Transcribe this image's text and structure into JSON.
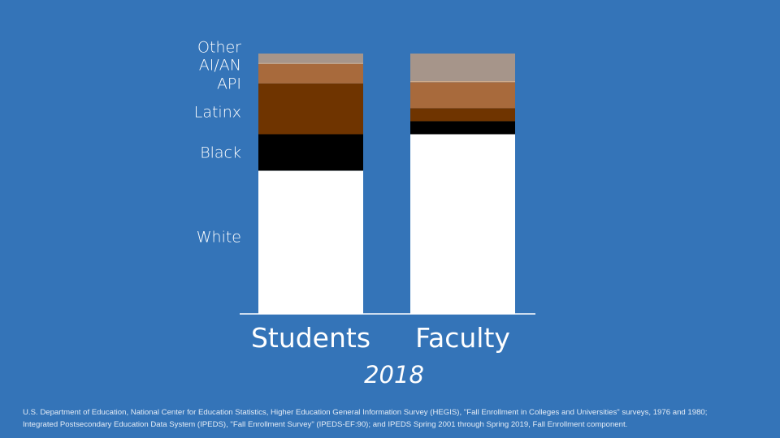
{
  "chart_data": {
    "type": "bar",
    "stacked": true,
    "normalized_percent": true,
    "categories": [
      "Students",
      "Faculty"
    ],
    "series": [
      {
        "name": "White",
        "values": [
          55,
          69
        ],
        "color": "#ffffff"
      },
      {
        "name": "Black",
        "values": [
          14,
          5
        ],
        "color": "#000000"
      },
      {
        "name": "Latinx",
        "values": [
          19.5,
          5
        ],
        "color": "#6f3400"
      },
      {
        "name": "API",
        "values": [
          7.5,
          10
        ],
        "color": "#a86a3c"
      },
      {
        "name": "AI/AN",
        "values": [
          0.4,
          0.4
        ],
        "color": "#d4ad8a"
      },
      {
        "name": "Other",
        "values": [
          3.6,
          10.6
        ],
        "color": "#a6958a"
      }
    ],
    "ylim": [
      0,
      100
    ],
    "subtitle": "2018",
    "grid": false,
    "legend": "left-of-bars"
  },
  "source": {
    "line1": "U.S. Department of Education, National Center for Education Statistics, Higher Education General Information Survey (HEGIS), \"Fall Enrollment in Colleges and Universities\" surveys, 1976 and 1980;",
    "line2": "Integrated Postsecondary Education Data System (IPEDS), \"Fall Enrollment Survey\" (IPEDS-EF:90); and IPEDS Spring 2001 through Spring 2019, Fall Enrollment component."
  },
  "colors": {
    "background": "#3474b8",
    "text": "#ffffff"
  }
}
